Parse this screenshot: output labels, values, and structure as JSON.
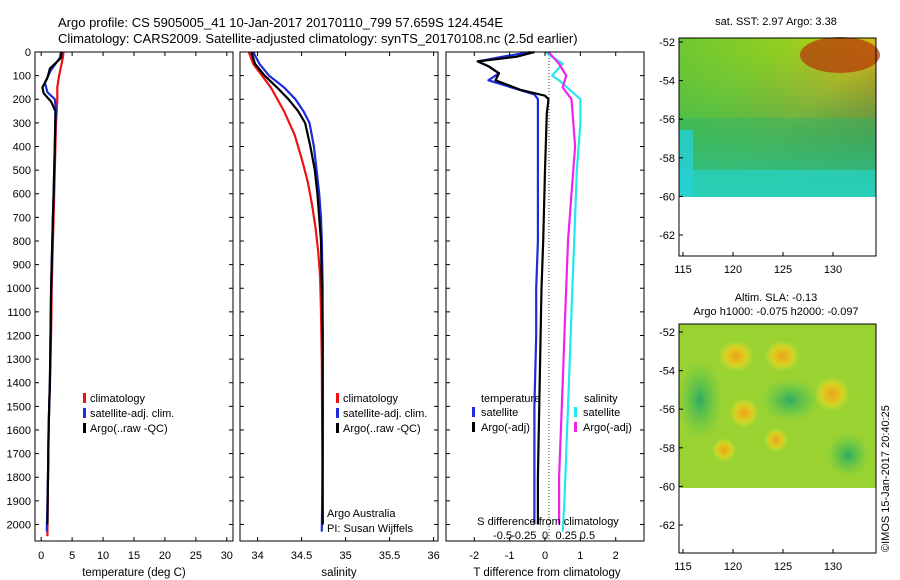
{
  "header": {
    "line1": "Argo profile: CS 5905005_41 10-Jan-2017 20170110_799 57.659S 124.454E",
    "line2": "Climatology: CARS2009. Satellite-adjusted climatology: synTS_20170108.nc (2.5d earlier)"
  },
  "colors": {
    "climatology": "#ee1111",
    "satellite": "#1c2bdc",
    "argo": "#000000",
    "satellite_salinity": "#22e8f0",
    "argo_salinity": "#ee22ee"
  },
  "depth_ticks": [
    "0",
    "100",
    "200",
    "300",
    "400",
    "500",
    "600",
    "700",
    "800",
    "900",
    "1000",
    "1100",
    "1200",
    "1300",
    "1400",
    "1500",
    "1600",
    "1700",
    "1800",
    "1900",
    "2000"
  ],
  "panel_temp": {
    "xlabel": "temperature (deg C)",
    "xticks": [
      "0",
      "5",
      "10",
      "15",
      "20",
      "25",
      "30"
    ],
    "legend": [
      "climatology",
      "satellite-adj. clim.",
      "Argo(..raw -QC)"
    ]
  },
  "panel_sal": {
    "xlabel": "salinity",
    "xticks": [
      "34",
      "34.5",
      "35",
      "35.5",
      "36"
    ],
    "legend": [
      "climatology",
      "satellite-adj. clim.",
      "Argo(..raw -QC)"
    ],
    "credit1": "Argo Australia",
    "credit2": "PI: Susan Wijffels"
  },
  "panel_diff": {
    "xlabel": "T difference from climatology",
    "toplabel": "S difference from climatology",
    "xticks_T": [
      "-2",
      "-1",
      "0",
      "1",
      "2"
    ],
    "xticks_S": [
      "-0.5",
      "-0.25",
      "0",
      "0.25",
      "0.5"
    ],
    "legend_t_title": "temperature",
    "legend_s_title": "salinity",
    "legend_t_items": [
      "satellite",
      "Argo(-adj)"
    ],
    "legend_s_items": [
      "satellite",
      "Argo(-adj)"
    ]
  },
  "map_sst": {
    "title": "sat. SST: 2.97 Argo: 3.38",
    "yticks": [
      "-52",
      "-54",
      "-56",
      "-58",
      "-60",
      "-62"
    ],
    "xticks": [
      "115",
      "120",
      "125",
      "130"
    ]
  },
  "map_sla": {
    "title1": "Altim. SLA: -0.13",
    "title2": "Argo h1000: -0.075 h2000: -0.097",
    "yticks": [
      "-52",
      "-54",
      "-56",
      "-58",
      "-60",
      "-62"
    ],
    "xticks": [
      "115",
      "120",
      "125",
      "130"
    ]
  },
  "stamp": "©IMOS 15-Jan-2017 20:40:25",
  "chart_data": [
    {
      "type": "line",
      "xlabel": "temperature (deg C)",
      "ylabel": "",
      "xlim": [
        -1,
        31
      ],
      "ylim": [
        2070,
        0
      ],
      "series": [
        {
          "name": "climatology",
          "color": "#ee1111",
          "x": [
            3.6,
            3.5,
            3.3,
            2.9,
            2.6,
            2.6,
            2.5,
            2.4,
            2.3,
            2.2,
            2.1,
            2.0,
            1.9,
            1.8,
            1.7,
            1.6,
            1.5,
            1.4,
            1.3,
            1.2,
            1.1,
            1.0
          ],
          "y": [
            0,
            25,
            50,
            100,
            150,
            200,
            250,
            300,
            400,
            500,
            600,
            700,
            800,
            900,
            1000,
            1200,
            1300,
            1400,
            1500,
            1600,
            1800,
            2050
          ]
        },
        {
          "name": "satellite-adj. clim.",
          "color": "#1c2bdc",
          "x": [
            3.2,
            3.0,
            1.5,
            0.6,
            1.0,
            2.2,
            2.4,
            2.3,
            2.2,
            2.1,
            2.0,
            1.9,
            1.8,
            1.7,
            1.6,
            1.5,
            1.4,
            1.3,
            1.2,
            1.1,
            0.9
          ],
          "y": [
            0,
            25,
            80,
            130,
            170,
            200,
            250,
            300,
            400,
            500,
            600,
            700,
            800,
            900,
            1000,
            1200,
            1400,
            1500,
            1600,
            1800,
            2030
          ]
        },
        {
          "name": "Argo(..raw -QC)",
          "color": "#000000",
          "x": [
            3.3,
            3.2,
            1.4,
            1.0,
            0.2,
            0.4,
            1.6,
            2.3,
            2.2,
            2.1,
            2.0,
            1.9,
            1.8,
            1.7,
            1.6,
            1.5,
            1.4,
            1.3,
            1.2,
            1.1,
            1.0
          ],
          "y": [
            0,
            25,
            70,
            110,
            150,
            175,
            210,
            250,
            400,
            500,
            600,
            700,
            800,
            900,
            1000,
            1200,
            1400,
            1500,
            1600,
            1800,
            2000
          ]
        }
      ]
    },
    {
      "type": "line",
      "xlabel": "salinity",
      "ylabel": "",
      "xlim": [
        33.8,
        36.05
      ],
      "ylim": [
        2070,
        0
      ],
      "series": [
        {
          "name": "climatology",
          "color": "#ee1111",
          "x": [
            33.9,
            33.95,
            34.05,
            34.15,
            34.3,
            34.42,
            34.5,
            34.57,
            34.62,
            34.66,
            34.69,
            34.71,
            34.72,
            34.73,
            34.74
          ],
          "y": [
            0,
            50,
            100,
            150,
            250,
            350,
            450,
            550,
            650,
            750,
            850,
            950,
            1100,
            1300,
            2000
          ]
        },
        {
          "name": "satellite-adj. clim.",
          "color": "#1c2bdc",
          "x": [
            33.95,
            34.02,
            34.13,
            34.3,
            34.43,
            34.52,
            34.59,
            34.64,
            34.67,
            34.7,
            34.72,
            34.73,
            34.74,
            34.74,
            34.74,
            34.73
          ],
          "y": [
            0,
            50,
            100,
            150,
            200,
            250,
            300,
            400,
            500,
            600,
            700,
            800,
            1000,
            1300,
            1700,
            2030
          ]
        },
        {
          "name": "Argo(..raw -QC)",
          "color": "#000000",
          "x": [
            33.93,
            33.97,
            34.08,
            34.22,
            34.35,
            34.46,
            34.54,
            34.6,
            34.65,
            34.68,
            34.7,
            34.72,
            34.73,
            34.74,
            34.74,
            34.74
          ],
          "y": [
            0,
            50,
            100,
            150,
            200,
            250,
            300,
            400,
            500,
            600,
            700,
            800,
            1000,
            1200,
            1600,
            2000
          ]
        }
      ]
    },
    {
      "type": "line",
      "xlabel": "T difference from climatology",
      "ylabel": "",
      "xlim": [
        -2.8,
        2.8
      ],
      "ylim": [
        2070,
        0
      ],
      "series": [
        {
          "name": "temperature satellite",
          "color": "#1c2bdc",
          "x": [
            -0.4,
            -1.2,
            -1.9,
            -1.6,
            -1.3,
            -1.6,
            -0.3,
            -0.2,
            -0.2,
            -0.2,
            -0.2,
            -0.25,
            -0.25,
            -0.3,
            -0.3,
            -0.3
          ],
          "y": [
            0,
            20,
            40,
            60,
            90,
            120,
            180,
            200,
            250,
            500,
            800,
            1000,
            1200,
            1500,
            1800,
            2000
          ]
        },
        {
          "name": "temperature Argo(-adj)",
          "color": "#000000",
          "x": [
            -0.3,
            -0.8,
            -1.9,
            -1.6,
            -1.3,
            -1.4,
            -0.7,
            0.0,
            0.1,
            0.05,
            0.0,
            -0.05,
            -0.1,
            -0.15,
            -0.2,
            -0.2
          ],
          "y": [
            0,
            20,
            40,
            60,
            90,
            120,
            160,
            185,
            200,
            260,
            500,
            800,
            1000,
            1400,
            1800,
            2000
          ]
        },
        {
          "name": "salinity satellite",
          "color": "#22e8f0",
          "x": [
            0.0,
            0.5,
            0.2,
            0.4,
            1.0,
            1.0,
            0.95,
            0.9,
            0.85,
            0.8,
            0.75,
            0.7,
            0.65,
            0.6,
            0.55,
            0.5
          ],
          "y": [
            0,
            50,
            100,
            120,
            200,
            300,
            400,
            500,
            700,
            900,
            1100,
            1300,
            1500,
            1700,
            1900,
            2030
          ]
        },
        {
          "name": "salinity Argo(-adj)",
          "color": "#ee22ee",
          "x": [
            0.1,
            0.4,
            0.6,
            0.5,
            0.75,
            0.8,
            0.85,
            0.75,
            0.65,
            0.6,
            0.55,
            0.5,
            0.45,
            0.4,
            0.4
          ],
          "y": [
            0,
            50,
            100,
            150,
            200,
            300,
            400,
            600,
            800,
            1000,
            1200,
            1400,
            1600,
            1800,
            2000
          ]
        }
      ]
    }
  ]
}
